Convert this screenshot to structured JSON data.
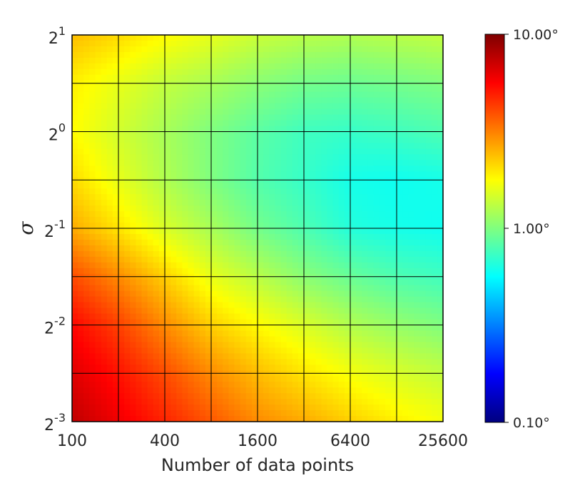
{
  "chart_data": {
    "type": "heatmap",
    "xlabel": "Number of data points",
    "ylabel": "σ",
    "x_scale": "log2",
    "y_scale": "log2",
    "x": [
      100,
      200,
      400,
      800,
      1600,
      3200,
      6400,
      12800,
      25600
    ],
    "x_tick_labels": [
      "100",
      "400",
      "1600",
      "6400",
      "25600"
    ],
    "x_tick_values": [
      100,
      400,
      1600,
      6400,
      25600
    ],
    "y_exponents": [
      -3,
      -2.5,
      -2,
      -1.5,
      -1,
      -0.5,
      0,
      0.5,
      1
    ],
    "y_tick_labels": [
      {
        "base": "2",
        "exp": "-3"
      },
      {
        "base": "2",
        "exp": "-2"
      },
      {
        "base": "2",
        "exp": "-1"
      },
      {
        "base": "2",
        "exp": "0"
      },
      {
        "base": "2",
        "exp": "1"
      }
    ],
    "y_tick_exponents": [
      -3,
      -2,
      -1,
      0,
      1
    ],
    "values_degrees": [
      [
        7.5,
        6.0,
        4.8,
        3.8,
        3.0,
        2.6,
        2.2,
        1.9,
        1.7
      ],
      [
        6.5,
        5.2,
        4.0,
        3.0,
        2.4,
        2.0,
        1.7,
        1.5,
        1.35
      ],
      [
        5.5,
        4.2,
        3.0,
        2.2,
        1.8,
        1.5,
        1.25,
        1.1,
        1.0
      ],
      [
        4.0,
        3.0,
        2.2,
        1.6,
        1.3,
        1.05,
        0.9,
        0.8,
        0.75
      ],
      [
        2.6,
        2.0,
        1.5,
        1.2,
        0.95,
        0.8,
        0.66,
        0.62,
        0.6
      ],
      [
        2.1,
        1.6,
        1.25,
        1.0,
        0.82,
        0.72,
        0.62,
        0.6,
        0.62
      ],
      [
        1.8,
        1.45,
        1.2,
        1.0,
        0.85,
        0.75,
        0.72,
        0.75,
        0.8
      ],
      [
        1.9,
        1.6,
        1.35,
        1.2,
        1.05,
        0.95,
        0.92,
        0.95,
        1.0
      ],
      [
        2.4,
        2.1,
        1.8,
        1.6,
        1.4,
        1.3,
        1.25,
        1.3,
        1.35
      ]
    ],
    "colorbar": {
      "colormap": "jet",
      "scale": "log",
      "min": 0.1,
      "max": 10,
      "tick_values": [
        10,
        1,
        0.1
      ],
      "tick_labels": [
        "10.00°",
        "1.00°",
        "0.10°"
      ]
    },
    "grid": true
  }
}
